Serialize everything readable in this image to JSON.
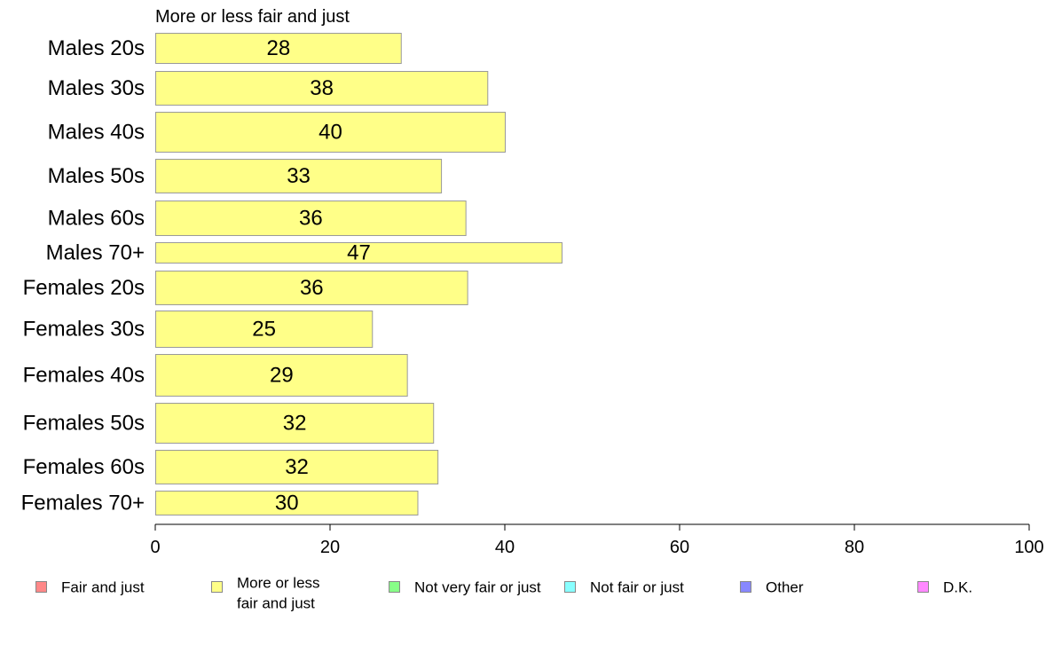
{
  "chart_data": {
    "type": "bar",
    "orientation": "horizontal",
    "title": "More or less fair and just",
    "categories": [
      "Males 20s",
      "Males 30s",
      "Males 40s",
      "Males 50s",
      "Males 60s",
      "Males 70+",
      "Females 20s",
      "Females 30s",
      "Females 40s",
      "Females 50s",
      "Females 60s",
      "Females 70+"
    ],
    "values": [
      28.2,
      38.1,
      40.1,
      32.8,
      35.6,
      46.6,
      35.8,
      24.9,
      28.9,
      31.9,
      32.4,
      30.1
    ],
    "value_labels": [
      "28",
      "38",
      "40",
      "33",
      "36",
      "47",
      "36",
      "25",
      "29",
      "32",
      "32",
      "30"
    ],
    "xlim": [
      0,
      100
    ],
    "xticks": [
      0,
      20,
      40,
      60,
      80,
      100
    ],
    "xtick_labels": [
      "0",
      "20",
      "40",
      "60",
      "80",
      "100"
    ],
    "xlabel": "",
    "ylabel": "",
    "grid": false,
    "bar_color": "#ffff88",
    "bar_edge_color": "#9a9a9a",
    "legend_position": "bottom",
    "legend": [
      {
        "label": "Fair and just",
        "color": "#ff8888"
      },
      {
        "label": "More or less fair and just",
        "line1": "More or less",
        "line2": "fair and just",
        "color": "#ffff88"
      },
      {
        "label": "Not very fair or just",
        "color": "#88ff88"
      },
      {
        "label": "Not fair or just",
        "color": "#88ffff"
      },
      {
        "label": "Other",
        "color": "#8888ff"
      },
      {
        "label": "D.K.",
        "color": "#ff88ff"
      }
    ]
  }
}
